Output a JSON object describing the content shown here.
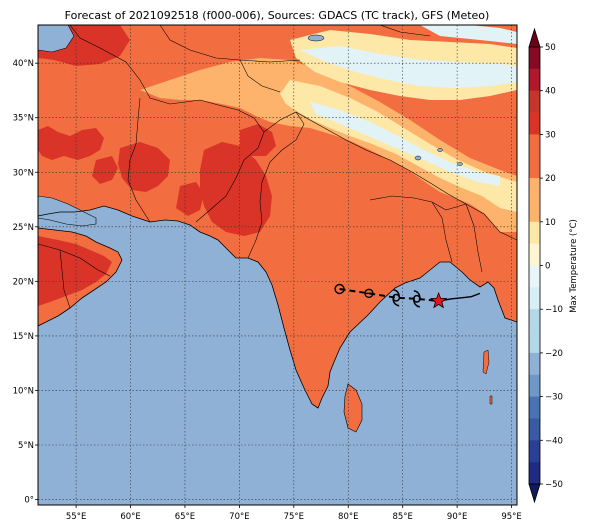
{
  "title": "Forecast of 2021092518 (f000-006), Sources: GDACS (TC track), GFS (Meteo)",
  "map": {
    "lon_range": [
      51.5,
      95.5
    ],
    "lat_range": [
      -0.5,
      43.5
    ],
    "lon_ticks": [
      "55°E",
      "60°E",
      "65°E",
      "70°E",
      "75°E",
      "80°E",
      "85°E",
      "90°E",
      "95°E"
    ],
    "lon_values": [
      55,
      60,
      65,
      70,
      75,
      80,
      85,
      90,
      95
    ],
    "lat_ticks": [
      "0°",
      "5°N",
      "10°N",
      "15°N",
      "20°N",
      "25°N",
      "30°N",
      "35°N",
      "40°N"
    ],
    "lat_values": [
      0,
      5,
      10,
      15,
      20,
      25,
      30,
      35,
      40
    ],
    "grid": "dotted",
    "colors": {
      "ocean": "#8fb1d6",
      "land_hot": "#f26e40",
      "land_very_hot": "#d93427",
      "land_warm": "#fdb36b",
      "land_mild": "#fde8a8",
      "land_cool": "#e2f3f8"
    }
  },
  "track": {
    "points": [
      {
        "lon": 79.2,
        "lat": 19.3,
        "symbol": "low"
      },
      {
        "lon": 81.9,
        "lat": 18.9,
        "symbol": "depression"
      },
      {
        "lon": 84.4,
        "lat": 18.5,
        "symbol": "storm"
      },
      {
        "lon": 86.3,
        "lat": 18.4,
        "symbol": "storm"
      },
      {
        "lon": 88.3,
        "lat": 18.2,
        "symbol": "current-position"
      }
    ],
    "forecast_line": [
      [
        88.3,
        18.2
      ],
      [
        89.5,
        18.4
      ],
      [
        90.5,
        18.5
      ],
      [
        91.3,
        18.6
      ],
      [
        92.1,
        18.9
      ]
    ]
  },
  "colorbar": {
    "label": "Max Temperature (°C)",
    "ticks": [
      "50",
      "40",
      "30",
      "20",
      "10",
      "0",
      "−10",
      "−20",
      "−30",
      "−40",
      "−50"
    ],
    "tick_values": [
      50,
      40,
      30,
      20,
      10,
      0,
      -10,
      -20,
      -30,
      -40,
      -50
    ],
    "levels": [
      {
        "from": 45,
        "to": 50,
        "color": "#870a24"
      },
      {
        "from": 40,
        "to": 45,
        "color": "#b2182b"
      },
      {
        "from": 35,
        "to": 40,
        "color": "#c5352b"
      },
      {
        "from": 30,
        "to": 35,
        "color": "#d93427"
      },
      {
        "from": 25,
        "to": 30,
        "color": "#f26e40"
      },
      {
        "from": 20,
        "to": 25,
        "color": "#f26e40"
      },
      {
        "from": 15,
        "to": 20,
        "color": "#fdb36b"
      },
      {
        "from": 10,
        "to": 15,
        "color": "#fdb36b"
      },
      {
        "from": 5,
        "to": 10,
        "color": "#fde8a8"
      },
      {
        "from": 0,
        "to": 5,
        "color": "#fef6d2"
      },
      {
        "from": -5,
        "to": 0,
        "color": "#e9f6f9"
      },
      {
        "from": -10,
        "to": -5,
        "color": "#d6eef5"
      },
      {
        "from": -15,
        "to": -10,
        "color": "#b1d7e8"
      },
      {
        "from": -20,
        "to": -15,
        "color": "#b1d7e8"
      },
      {
        "from": -25,
        "to": -20,
        "color": "#8fb1d6"
      },
      {
        "from": -30,
        "to": -25,
        "color": "#6f98c8"
      },
      {
        "from": -35,
        "to": -30,
        "color": "#4a73b3"
      },
      {
        "from": -40,
        "to": -35,
        "color": "#3b5aa5"
      },
      {
        "from": -45,
        "to": -40,
        "color": "#2b3f96"
      },
      {
        "from": -50,
        "to": -45,
        "color": "#1f2a84"
      }
    ],
    "max_color": "#6b0019",
    "min_color": "#111a5e"
  }
}
